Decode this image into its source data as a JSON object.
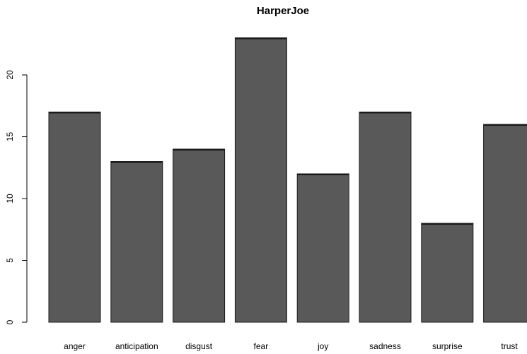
{
  "chart_data": {
    "type": "bar",
    "title": "HarperJoe",
    "xlabel": "",
    "ylabel": "",
    "categories": [
      "anger",
      "anticipation",
      "disgust",
      "fear",
      "joy",
      "sadness",
      "surprise",
      "trust"
    ],
    "values": [
      17,
      13,
      14,
      23,
      12,
      17,
      8,
      16
    ],
    "ylim": [
      0,
      23
    ],
    "yticks": [
      0,
      5,
      10,
      15,
      20
    ],
    "grid": false,
    "bar_color": "#595959",
    "bar_edge_color": "#1a1a1a"
  }
}
